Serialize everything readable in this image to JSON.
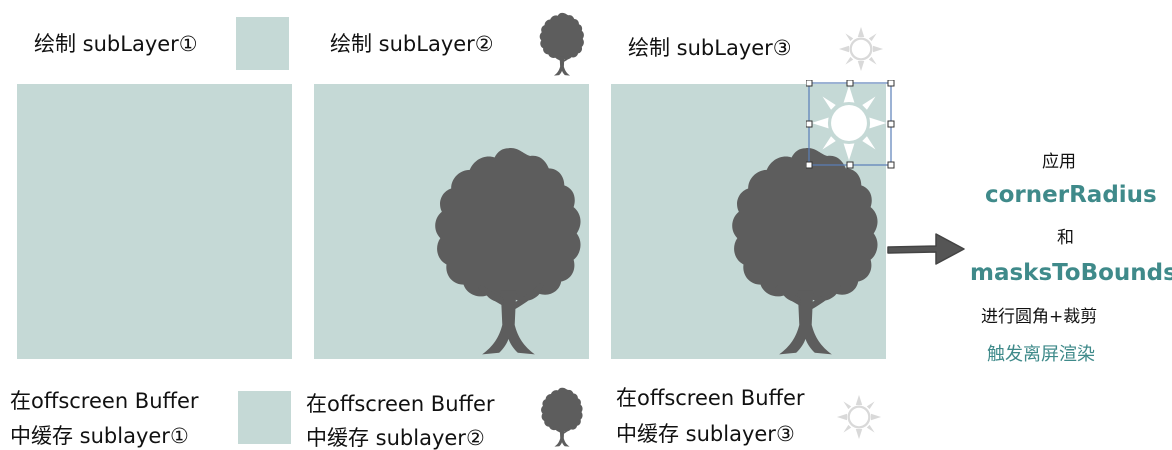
{
  "steps": [
    {
      "draw_label": "绘制 subLayer①",
      "buffer_line1": "在offscreen Buffer",
      "buffer_line2": "中缓存 sublayer①"
    },
    {
      "draw_label": "绘制 subLayer②",
      "buffer_line1": "在offscreen Buffer",
      "buffer_line2": "中缓存 sublayer②"
    },
    {
      "draw_label": "绘制 subLayer③",
      "buffer_line1": "在offscreen Buffer",
      "buffer_line2": "中缓存 sublayer③"
    }
  ],
  "side_note": {
    "line1": "应用",
    "line2": "cornerRadius",
    "line3": "和",
    "line4": "masksToBounds",
    "line5": "进行圆角+裁剪",
    "line6": "触发离屏渲染"
  },
  "colors": {
    "panel": "#c5d9d6",
    "tree": "#5d5d5d",
    "accent_text": "#3f8a8a",
    "sun_icon": "#d9d9d9",
    "selection": "#5a7fb8"
  },
  "icons": [
    "tree-icon",
    "sun-icon",
    "arrow-right-icon"
  ]
}
